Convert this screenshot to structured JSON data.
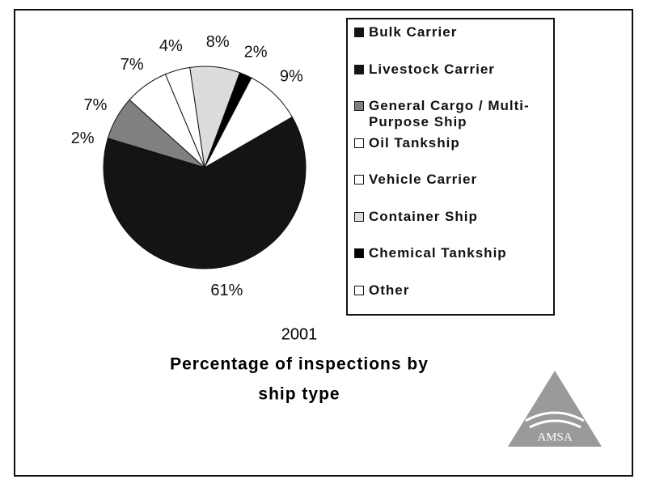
{
  "chart_data": {
    "type": "pie",
    "title_lines": [
      "2001",
      "Percentage of inspections  by",
      "ship type"
    ],
    "categories": [
      "Bulk Carrier",
      "Livestock Carrier",
      "General Cargo / Multi-Purpose Ship",
      "Oil Tankship",
      "Vehicle Carrier",
      "Container Ship",
      "Chemical Tankship",
      "Other"
    ],
    "values": [
      61,
      2,
      7,
      7,
      4,
      8,
      2,
      9
    ],
    "value_labels": [
      "61%",
      "2%",
      "7%",
      "7%",
      "4%",
      "8%",
      "2%",
      "9%"
    ],
    "colors": [
      "#141414",
      "#141414",
      "#808080",
      "#ffffff",
      "#ffffff",
      "#dcdcdc",
      "#000000",
      "#ffffff"
    ],
    "logo_text": "AMSA"
  }
}
